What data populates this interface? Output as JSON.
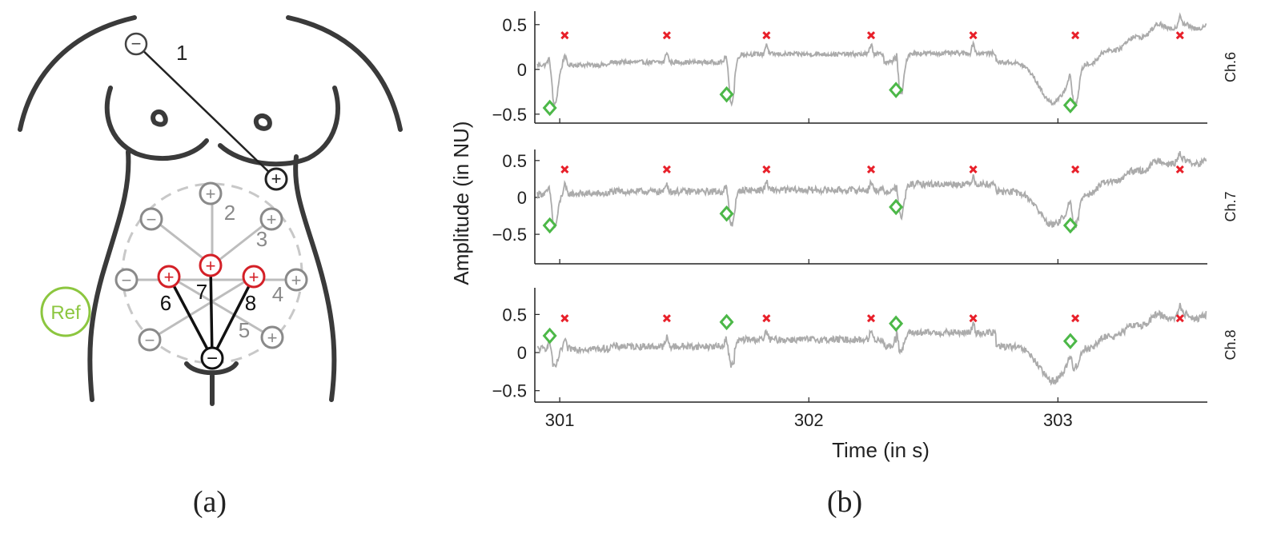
{
  "panel_a": {
    "caption": "(a)",
    "ref_label": "Ref",
    "lead_1": {
      "label": "1",
      "neg": "−",
      "pos": "+"
    },
    "circle_leads": [
      {
        "label": "2",
        "sign": "+"
      },
      {
        "label": "3",
        "sign": "+"
      },
      {
        "label": "4",
        "sign": "+"
      },
      {
        "label": "5",
        "sign": "+"
      },
      {
        "label": "",
        "sign": "−"
      },
      {
        "label": "",
        "sign": "−"
      },
      {
        "label": "",
        "sign": "−"
      }
    ],
    "active_leads": [
      {
        "label": "6",
        "sign": "+"
      },
      {
        "label": "7",
        "sign": "+"
      },
      {
        "label": "8",
        "sign": "+"
      }
    ],
    "common_negative": "−",
    "colors": {
      "body": "#3a3a3a",
      "lead": "#8a8a8a",
      "active": "#d42027",
      "ref": "#8cc63f"
    }
  },
  "panel_b": {
    "caption": "(b)",
    "ylabel": "Amplitude (in NU)",
    "xlabel": "Time (in s)",
    "colors": {
      "signal": "#ababab",
      "maternal_marker": "#e8202a",
      "fetal_marker": "#4cb848"
    }
  },
  "chart_data": [
    {
      "type": "line",
      "channel": "Ch.6",
      "xlim": [
        300.9,
        303.6
      ],
      "ylim": [
        -0.6,
        0.65
      ],
      "xticks": [
        301,
        302,
        303
      ],
      "yticks": [
        0.5,
        0,
        -0.5
      ],
      "ytick_labels": [
        "0.5",
        "0",
        "−0.5"
      ],
      "maternal_peaks_x": [
        301.02,
        301.43,
        301.83,
        302.25,
        302.66,
        303.07,
        303.49
      ],
      "maternal_marker_y": 0.38,
      "fetal_markers": [
        {
          "x": 300.96,
          "y": -0.43
        },
        {
          "x": 301.67,
          "y": -0.28
        },
        {
          "x": 302.35,
          "y": -0.23
        },
        {
          "x": 303.05,
          "y": -0.4
        }
      ]
    },
    {
      "type": "line",
      "channel": "Ch.7",
      "xlim": [
        300.9,
        303.6
      ],
      "ylim": [
        -0.9,
        0.65
      ],
      "xticks": [
        301,
        302,
        303
      ],
      "yticks": [
        0.5,
        0,
        -0.5
      ],
      "ytick_labels": [
        "0.5",
        "0",
        "−0.5"
      ],
      "maternal_peaks_x": [
        301.02,
        301.43,
        301.83,
        302.25,
        302.66,
        303.07,
        303.49
      ],
      "maternal_marker_y": 0.38,
      "fetal_markers": [
        {
          "x": 300.96,
          "y": -0.38
        },
        {
          "x": 301.67,
          "y": -0.22
        },
        {
          "x": 302.35,
          "y": -0.13
        },
        {
          "x": 303.05,
          "y": -0.38
        }
      ]
    },
    {
      "type": "line",
      "channel": "Ch.8",
      "xlim": [
        300.9,
        303.6
      ],
      "ylim": [
        -0.65,
        0.85
      ],
      "xticks": [
        301,
        302,
        303
      ],
      "xtick_labels": [
        "301",
        "302",
        "303"
      ],
      "yticks": [
        0.5,
        0,
        -0.5
      ],
      "ytick_labels": [
        "0.5",
        "0",
        "−0.5"
      ],
      "maternal_peaks_x": [
        301.02,
        301.43,
        301.83,
        302.25,
        302.66,
        303.07,
        303.49
      ],
      "maternal_marker_y": 0.45,
      "fetal_markers": [
        {
          "x": 300.96,
          "y": 0.22
        },
        {
          "x": 301.67,
          "y": 0.4
        },
        {
          "x": 302.35,
          "y": 0.38
        },
        {
          "x": 303.05,
          "y": 0.15
        }
      ]
    }
  ]
}
